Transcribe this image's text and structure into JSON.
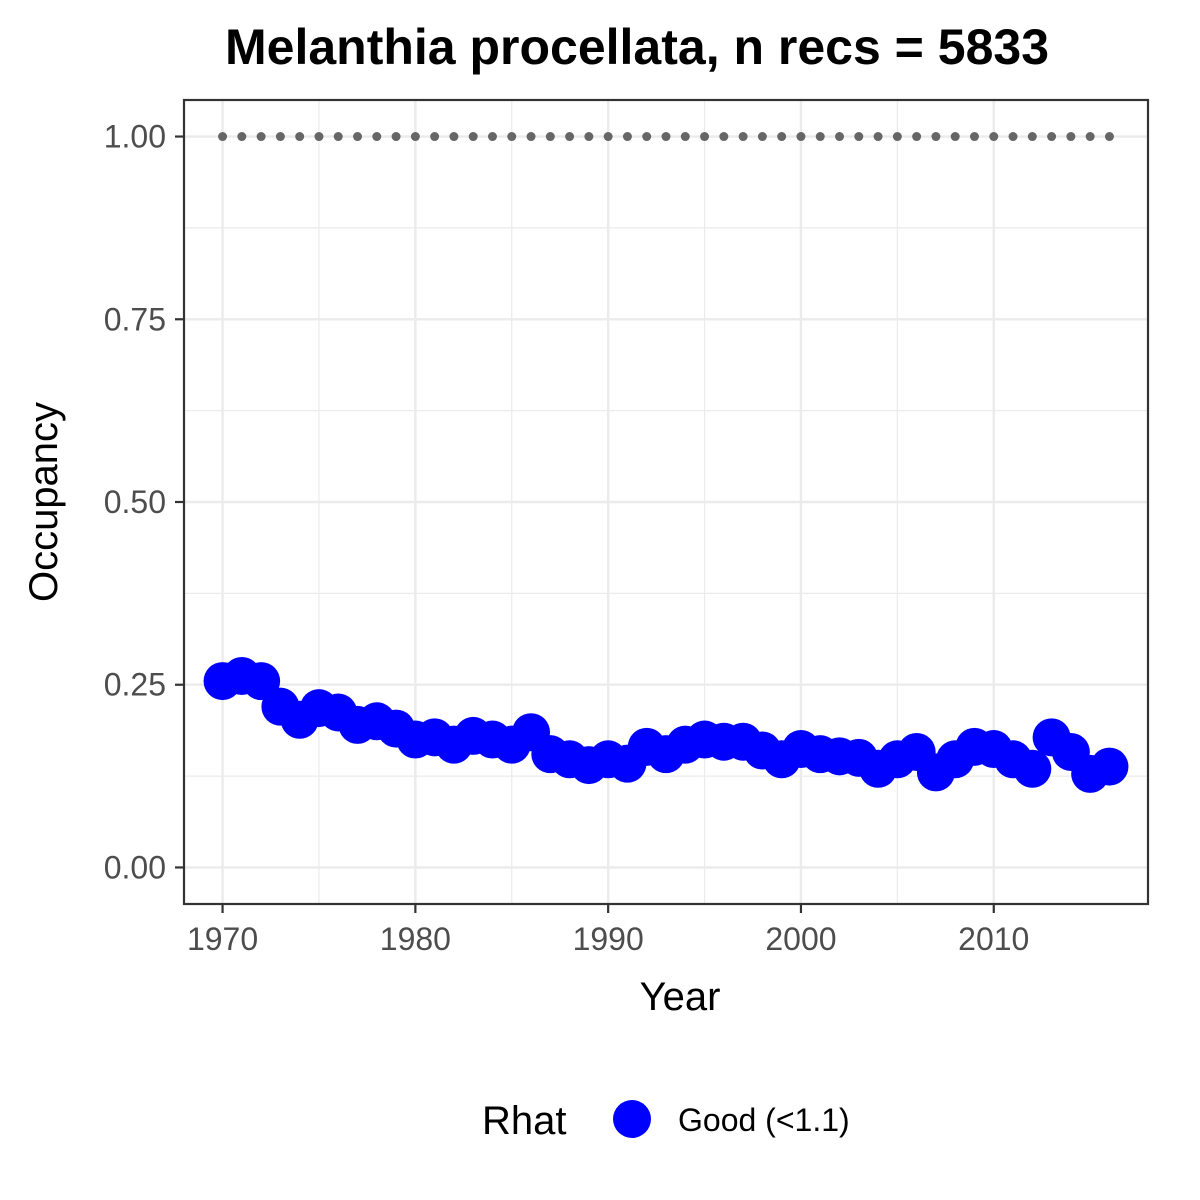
{
  "chart_data": {
    "type": "scatter",
    "title": "Melanthia procellata, n recs = 5833",
    "xlabel": "Year",
    "ylabel": "Occupancy",
    "xlim": [
      1968,
      2018
    ],
    "ylim": [
      -0.05,
      1.05
    ],
    "x_ticks": [
      1970,
      1980,
      1990,
      2000,
      2010
    ],
    "x_tick_labels": [
      "1970",
      "1980",
      "1990",
      "2000",
      "2010"
    ],
    "y_ticks": [
      0,
      0.25,
      0.5,
      0.75,
      1
    ],
    "y_tick_labels": [
      "0.00",
      "0.25",
      "0.50",
      "0.75",
      "1.00"
    ],
    "grid": true,
    "legend": {
      "position": "bottom",
      "title": "Rhat",
      "entries": [
        "Good (<1.1)"
      ]
    },
    "series": [
      {
        "name": "Good (<1.1)",
        "color": "#0000ff",
        "x": [
          1970,
          1971,
          1972,
          1973,
          1974,
          1975,
          1976,
          1977,
          1978,
          1979,
          1980,
          1981,
          1982,
          1983,
          1984,
          1985,
          1986,
          1987,
          1988,
          1989,
          1990,
          1991,
          1992,
          1993,
          1994,
          1995,
          1996,
          1997,
          1998,
          1999,
          2000,
          2001,
          2002,
          2003,
          2004,
          2005,
          2006,
          2007,
          2008,
          2009,
          2010,
          2011,
          2012,
          2013,
          2014,
          2015,
          2016
        ],
        "y": [
          0.255,
          0.262,
          0.255,
          0.22,
          0.202,
          0.218,
          0.212,
          0.195,
          0.2,
          0.19,
          0.175,
          0.178,
          0.168,
          0.18,
          0.175,
          0.168,
          0.185,
          0.155,
          0.148,
          0.14,
          0.148,
          0.142,
          0.165,
          0.155,
          0.168,
          0.175,
          0.172,
          0.172,
          0.16,
          0.148,
          0.162,
          0.155,
          0.152,
          0.15,
          0.135,
          0.148,
          0.158,
          0.13,
          0.148,
          0.165,
          0.162,
          0.148,
          0.135,
          0.178,
          0.158,
          0.128,
          0.138
        ]
      },
      {
        "name": "",
        "color": "#666666",
        "x": [
          1970,
          1971,
          1972,
          1973,
          1974,
          1975,
          1976,
          1977,
          1978,
          1979,
          1980,
          1981,
          1982,
          1983,
          1984,
          1985,
          1986,
          1987,
          1988,
          1989,
          1990,
          1991,
          1992,
          1993,
          1994,
          1995,
          1996,
          1997,
          1998,
          1999,
          2000,
          2001,
          2002,
          2003,
          2004,
          2005,
          2006,
          2007,
          2008,
          2009,
          2010,
          2011,
          2012,
          2013,
          2014,
          2015,
          2016
        ],
        "y": [
          1,
          1,
          1,
          1,
          1,
          1,
          1,
          1,
          1,
          1,
          1,
          1,
          1,
          1,
          1,
          1,
          1,
          1,
          1,
          1,
          1,
          1,
          1,
          1,
          1,
          1,
          1,
          1,
          1,
          1,
          1,
          1,
          1,
          1,
          1,
          1,
          1,
          1,
          1,
          1,
          1,
          1,
          1,
          1,
          1,
          1,
          1
        ]
      }
    ],
    "ribbon": {
      "x": [
        1970,
        1971,
        1972,
        1973,
        1974,
        1975,
        1976,
        1977,
        1978,
        1979,
        1980,
        1981,
        1982,
        1983,
        1984,
        1985,
        1986,
        1987,
        1988,
        1989,
        1990,
        1991,
        1992,
        1993,
        1994,
        1995,
        1996,
        1997,
        1998,
        1999,
        2000,
        2001,
        2002,
        2003,
        2004,
        2005,
        2006,
        2007,
        2008,
        2009,
        2010,
        2011,
        2012,
        2013,
        2014,
        2015,
        2016
      ],
      "lower": [
        0.23,
        0.24,
        0.237,
        0.205,
        0.188,
        0.204,
        0.198,
        0.182,
        0.187,
        0.177,
        0.162,
        0.165,
        0.156,
        0.167,
        0.163,
        0.156,
        0.172,
        0.144,
        0.137,
        0.13,
        0.137,
        0.132,
        0.153,
        0.144,
        0.156,
        0.163,
        0.16,
        0.16,
        0.149,
        0.138,
        0.151,
        0.144,
        0.141,
        0.139,
        0.125,
        0.137,
        0.147,
        0.12,
        0.137,
        0.153,
        0.151,
        0.137,
        0.125,
        0.166,
        0.147,
        0.118,
        0.128
      ],
      "upper": [
        0.28,
        0.285,
        0.273,
        0.235,
        0.216,
        0.232,
        0.226,
        0.208,
        0.213,
        0.203,
        0.188,
        0.191,
        0.18,
        0.193,
        0.187,
        0.18,
        0.198,
        0.166,
        0.159,
        0.15,
        0.159,
        0.152,
        0.177,
        0.166,
        0.18,
        0.187,
        0.184,
        0.184,
        0.171,
        0.158,
        0.173,
        0.166,
        0.163,
        0.161,
        0.145,
        0.159,
        0.169,
        0.14,
        0.159,
        0.177,
        0.173,
        0.159,
        0.145,
        0.19,
        0.169,
        0.138,
        0.148
      ],
      "color": "#bebebe"
    }
  }
}
